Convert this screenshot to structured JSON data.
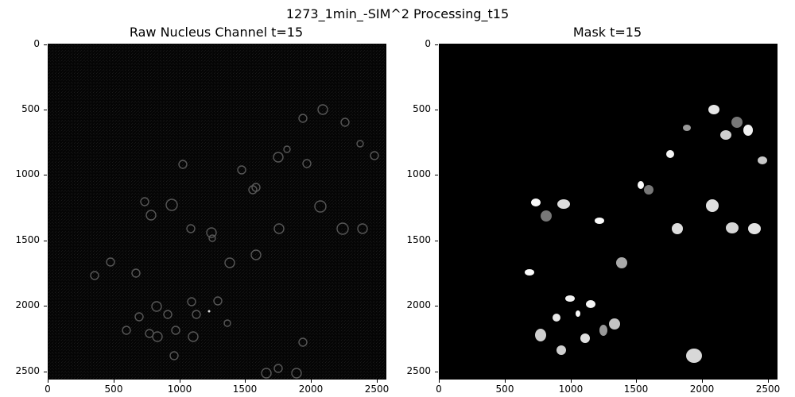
{
  "figure": {
    "suptitle": "1273_1min_-SIM^2 Processing_t15"
  },
  "panels": [
    {
      "title": "Raw Nucleus Channel t=15",
      "image": "raw-nucleus-grayscale-image",
      "y_ticks": [
        "0",
        "500",
        "1000",
        "1500",
        "2000",
        "2500"
      ],
      "x_ticks": [
        "0",
        "500",
        "1000",
        "1500",
        "2000",
        "2500"
      ]
    },
    {
      "title": "Mask t=15",
      "image": "segmentation-mask-image",
      "y_ticks": [
        "0",
        "500",
        "1000",
        "1500",
        "2000",
        "2500"
      ],
      "x_ticks": [
        "0",
        "500",
        "1000",
        "1500",
        "2000",
        "2500"
      ]
    }
  ]
}
